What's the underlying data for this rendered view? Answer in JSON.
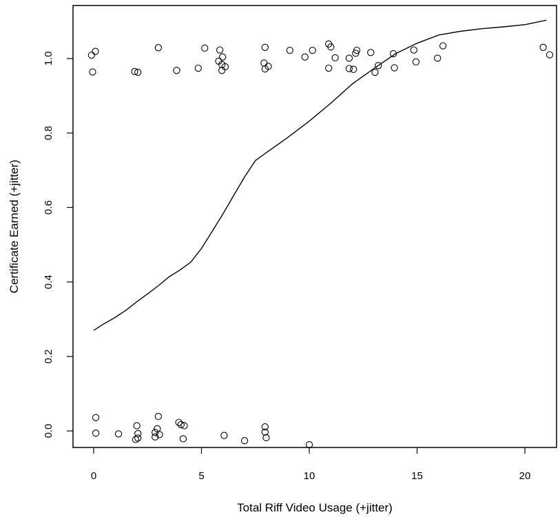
{
  "chart_data": {
    "type": "scatter",
    "xlabel": "Total Riff Video Usage (+jitter)",
    "ylabel": "Certificate Earned (+jitter)",
    "xlim": [
      -1,
      21.5
    ],
    "ylim": [
      -0.045,
      1.145
    ],
    "x_ticks": [
      0,
      5,
      10,
      15,
      20
    ],
    "x_tick_labels": [
      "0",
      "5",
      "10",
      "15",
      "20"
    ],
    "y_ticks": [
      0.0,
      0.2,
      0.4,
      0.6,
      0.8,
      1.0
    ],
    "y_tick_labels": [
      "0.0",
      "0.2",
      "0.4",
      "0.6",
      "0.8",
      "1.0"
    ],
    "grid": false,
    "legend": "none",
    "colors": {
      "points": "#000000",
      "curve": "#000000",
      "frame": "#000000"
    },
    "points": [
      {
        "x": -0.1,
        "y": 1.009
      },
      {
        "x": 0.08,
        "y": 1.019
      },
      {
        "x": -0.05,
        "y": 0.964
      },
      {
        "x": 1.9,
        "y": 0.965
      },
      {
        "x": 2.05,
        "y": 0.963
      },
      {
        "x": 3.0,
        "y": 1.029
      },
      {
        "x": 3.85,
        "y": 0.968
      },
      {
        "x": 4.85,
        "y": 0.974
      },
      {
        "x": 5.15,
        "y": 1.028
      },
      {
        "x": 5.85,
        "y": 1.023
      },
      {
        "x": 5.8,
        "y": 0.993
      },
      {
        "x": 5.98,
        "y": 1.004
      },
      {
        "x": 5.95,
        "y": 0.984
      },
      {
        "x": 6.1,
        "y": 0.978
      },
      {
        "x": 5.95,
        "y": 0.968
      },
      {
        "x": 7.95,
        "y": 1.03
      },
      {
        "x": 7.9,
        "y": 0.988
      },
      {
        "x": 8.1,
        "y": 0.979
      },
      {
        "x": 7.95,
        "y": 0.972
      },
      {
        "x": 9.1,
        "y": 1.022
      },
      {
        "x": 9.8,
        "y": 1.004
      },
      {
        "x": 10.15,
        "y": 1.022
      },
      {
        "x": 10.9,
        "y": 1.039
      },
      {
        "x": 11.0,
        "y": 1.031
      },
      {
        "x": 11.2,
        "y": 1.002
      },
      {
        "x": 10.9,
        "y": 0.974
      },
      {
        "x": 11.85,
        "y": 1.001
      },
      {
        "x": 11.85,
        "y": 0.973
      },
      {
        "x": 12.05,
        "y": 0.971
      },
      {
        "x": 12.15,
        "y": 1.014
      },
      {
        "x": 12.2,
        "y": 1.022
      },
      {
        "x": 12.85,
        "y": 1.016
      },
      {
        "x": 13.2,
        "y": 0.981
      },
      {
        "x": 13.05,
        "y": 0.963
      },
      {
        "x": 13.9,
        "y": 1.013
      },
      {
        "x": 13.95,
        "y": 0.975
      },
      {
        "x": 14.85,
        "y": 1.023
      },
      {
        "x": 14.95,
        "y": 0.991
      },
      {
        "x": 15.95,
        "y": 1.001
      },
      {
        "x": 16.2,
        "y": 1.034
      },
      {
        "x": 20.85,
        "y": 1.03
      },
      {
        "x": 21.15,
        "y": 1.01
      },
      {
        "x": 0.1,
        "y": 0.036
      },
      {
        "x": 0.1,
        "y": -0.006
      },
      {
        "x": 1.15,
        "y": -0.008
      },
      {
        "x": 2.0,
        "y": 0.014
      },
      {
        "x": 2.05,
        "y": -0.007
      },
      {
        "x": 2.05,
        "y": -0.019
      },
      {
        "x": 1.95,
        "y": -0.023
      },
      {
        "x": 3.0,
        "y": 0.039
      },
      {
        "x": 2.95,
        "y": 0.006
      },
      {
        "x": 2.85,
        "y": -0.004
      },
      {
        "x": 3.05,
        "y": -0.01
      },
      {
        "x": 2.85,
        "y": -0.016
      },
      {
        "x": 3.95,
        "y": 0.023
      },
      {
        "x": 4.05,
        "y": 0.017
      },
      {
        "x": 4.2,
        "y": 0.014
      },
      {
        "x": 4.15,
        "y": -0.021
      },
      {
        "x": 6.05,
        "y": -0.012
      },
      {
        "x": 7.0,
        "y": -0.026
      },
      {
        "x": 7.95,
        "y": 0.011
      },
      {
        "x": 7.95,
        "y": -0.003
      },
      {
        "x": 8.0,
        "y": -0.018
      },
      {
        "x": 10.0,
        "y": -0.037
      }
    ],
    "series": [
      {
        "type": "line",
        "values_xy": [
          [
            0,
            0.27
          ],
          [
            0.4,
            0.285
          ],
          [
            1,
            0.305
          ],
          [
            1.5,
            0.324
          ],
          [
            2,
            0.347
          ],
          [
            2.5,
            0.368
          ],
          [
            3,
            0.39
          ],
          [
            3.5,
            0.414
          ],
          [
            4,
            0.432
          ],
          [
            4.5,
            0.453
          ],
          [
            5,
            0.49
          ],
          [
            5.5,
            0.536
          ],
          [
            6,
            0.583
          ],
          [
            6.5,
            0.633
          ],
          [
            7,
            0.682
          ],
          [
            7.5,
            0.726
          ],
          [
            8,
            0.747
          ],
          [
            9,
            0.788
          ],
          [
            10,
            0.832
          ],
          [
            11,
            0.88
          ],
          [
            12,
            0.932
          ],
          [
            13,
            0.973
          ],
          [
            14,
            1.013
          ],
          [
            15,
            1.041
          ],
          [
            16,
            1.063
          ],
          [
            17,
            1.073
          ],
          [
            18,
            1.08
          ],
          [
            19,
            1.085
          ],
          [
            20,
            1.091
          ],
          [
            21,
            1.103
          ]
        ]
      }
    ]
  }
}
